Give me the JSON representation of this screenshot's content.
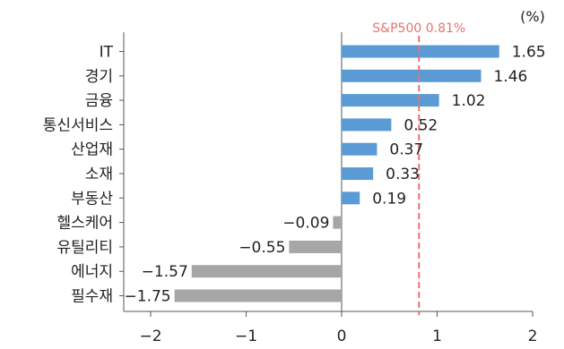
{
  "chart_data": {
    "type": "bar",
    "orientation": "horizontal",
    "categories": [
      "IT",
      "경기",
      "금융",
      "통신서비스",
      "산업재",
      "소재",
      "부동산",
      "헬스케어",
      "유틸리티",
      "에너지",
      "필수재"
    ],
    "values": [
      1.65,
      1.46,
      1.02,
      0.52,
      0.37,
      0.33,
      0.19,
      -0.09,
      -0.55,
      -1.57,
      -1.75
    ],
    "value_labels": [
      "1.65",
      "1.46",
      "1.02",
      "0.52",
      "0.37",
      "0.33",
      "0.19",
      "−0.09",
      "−0.55",
      "−1.57",
      "−1.75"
    ],
    "unit_label": "(%)",
    "xlim": [
      -2,
      2
    ],
    "x_ticks": [
      -2,
      -1,
      0,
      1,
      2
    ],
    "x_tick_labels": [
      "−2",
      "−1",
      "0",
      "1",
      "2"
    ],
    "reference_line": {
      "value": 0.81,
      "label": "S&P500 0.81%",
      "style": "dashed",
      "color": "#e8736c"
    },
    "colors": {
      "positive": "#5b9bd5",
      "negative": "#a6a6a6"
    },
    "grid": false
  }
}
